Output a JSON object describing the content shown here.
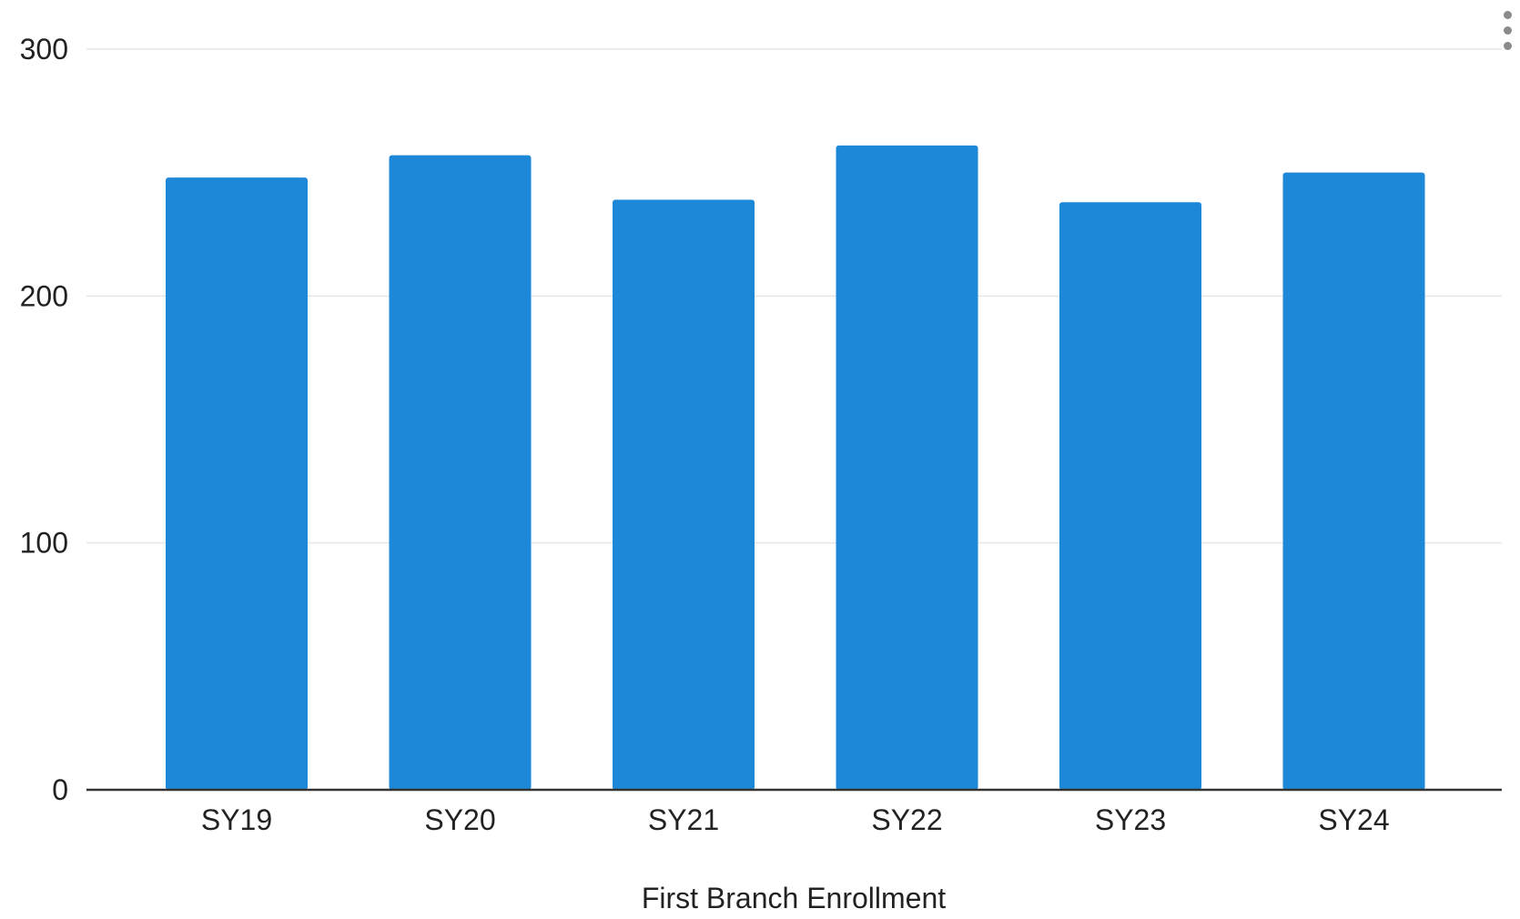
{
  "chart_data": {
    "type": "bar",
    "categories": [
      "SY19",
      "SY20",
      "SY21",
      "SY22",
      "SY23",
      "SY24"
    ],
    "values": [
      248,
      257,
      239,
      261,
      238,
      250
    ],
    "xlabel": "First Branch Enrollment",
    "ylabel": "",
    "ylim": [
      0,
      300
    ],
    "yticks": [
      "0",
      "100",
      "200",
      "300"
    ],
    "grid": true,
    "legend": "none",
    "bar_color": "#1e88d8"
  },
  "toolbar": {
    "menu_icon": "more-vertical-icon"
  }
}
